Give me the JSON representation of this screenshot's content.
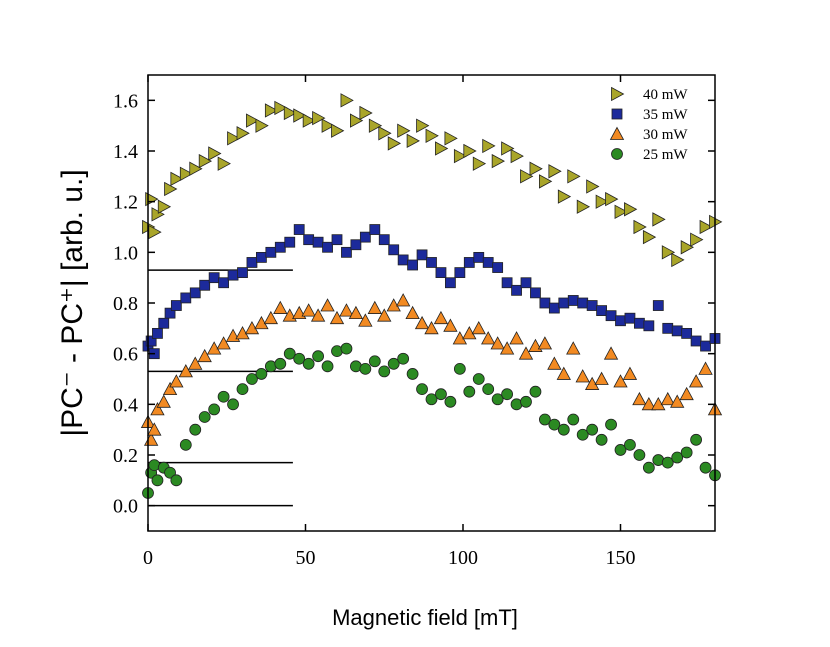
{
  "chart_data": {
    "type": "scatter",
    "title": "",
    "xlabel": "Magnetic field [mT]",
    "ylabel": "|PC⁻ - PC⁺| [arb. u.]",
    "xlim": [
      0,
      180
    ],
    "ylim": [
      -0.1,
      1.7
    ],
    "xticks": [
      0,
      50,
      100,
      150
    ],
    "yticks": [
      0.0,
      0.2,
      0.4,
      0.6,
      0.8,
      1.0,
      1.2,
      1.4,
      1.6
    ],
    "xtick_labels": [
      "0",
      "50",
      "100",
      "150"
    ],
    "ytick_labels": [
      "0.0",
      "0.2",
      "0.4",
      "0.6",
      "0.8",
      "1.0",
      "1.2",
      "1.4",
      "1.6"
    ],
    "grid": false,
    "legend_position": "top-right",
    "reference_lines": [
      {
        "y": 0.93,
        "x_range": [
          0,
          46
        ]
      },
      {
        "y": 0.53,
        "x_range": [
          0,
          46
        ]
      },
      {
        "y": 0.17,
        "x_range": [
          0,
          46
        ]
      },
      {
        "y": 0.0,
        "x_range": [
          0,
          46
        ]
      }
    ],
    "series": [
      {
        "name": "40 mW",
        "marker": "triangle-right",
        "color": "#a9a52a",
        "x": [
          0,
          1,
          2,
          3,
          5,
          7,
          9,
          12,
          15,
          18,
          21,
          24,
          27,
          30,
          33,
          36,
          39,
          42,
          45,
          48,
          51,
          54,
          57,
          60,
          63,
          66,
          69,
          72,
          75,
          78,
          81,
          84,
          87,
          90,
          93,
          96,
          99,
          102,
          105,
          108,
          111,
          114,
          117,
          120,
          123,
          126,
          129,
          132,
          135,
          138,
          141,
          144,
          147,
          150,
          153,
          156,
          159,
          162,
          165,
          168,
          171,
          174,
          177,
          180
        ],
        "y": [
          1.1,
          1.21,
          1.08,
          1.15,
          1.18,
          1.25,
          1.29,
          1.31,
          1.33,
          1.36,
          1.39,
          1.35,
          1.45,
          1.47,
          1.52,
          1.5,
          1.56,
          1.57,
          1.55,
          1.54,
          1.52,
          1.53,
          1.5,
          1.48,
          1.6,
          1.52,
          1.55,
          1.5,
          1.47,
          1.43,
          1.48,
          1.44,
          1.5,
          1.46,
          1.41,
          1.45,
          1.38,
          1.4,
          1.35,
          1.42,
          1.36,
          1.41,
          1.38,
          1.3,
          1.33,
          1.28,
          1.32,
          1.22,
          1.3,
          1.18,
          1.26,
          1.2,
          1.21,
          1.16,
          1.17,
          1.1,
          1.06,
          1.13,
          1.0,
          0.97,
          1.02,
          1.05,
          1.1,
          1.12
        ]
      },
      {
        "name": "35 mW",
        "marker": "square",
        "color": "#1c2a9b",
        "x": [
          0,
          1,
          2,
          3,
          5,
          7,
          9,
          12,
          15,
          18,
          21,
          24,
          27,
          30,
          33,
          36,
          39,
          42,
          45,
          48,
          51,
          54,
          57,
          60,
          63,
          66,
          69,
          72,
          75,
          78,
          81,
          84,
          87,
          90,
          93,
          96,
          99,
          102,
          105,
          108,
          111,
          114,
          117,
          120,
          123,
          126,
          129,
          132,
          135,
          138,
          141,
          144,
          147,
          150,
          153,
          156,
          159,
          162,
          165,
          168,
          171,
          174,
          177,
          180
        ],
        "y": [
          0.63,
          0.65,
          0.6,
          0.68,
          0.72,
          0.76,
          0.79,
          0.82,
          0.84,
          0.87,
          0.9,
          0.88,
          0.91,
          0.92,
          0.96,
          0.98,
          1.0,
          1.02,
          1.04,
          1.09,
          1.05,
          1.04,
          1.02,
          1.05,
          1.0,
          1.03,
          1.06,
          1.09,
          1.05,
          1.01,
          0.97,
          0.95,
          0.99,
          0.96,
          0.92,
          0.88,
          0.92,
          0.96,
          0.98,
          0.96,
          0.94,
          0.88,
          0.85,
          0.88,
          0.84,
          0.8,
          0.78,
          0.8,
          0.81,
          0.8,
          0.79,
          0.77,
          0.75,
          0.73,
          0.74,
          0.72,
          0.71,
          0.79,
          0.7,
          0.69,
          0.68,
          0.65,
          0.63,
          0.66
        ]
      },
      {
        "name": "30 mW",
        "marker": "triangle-up",
        "color": "#f28a22",
        "x": [
          0,
          1,
          2,
          3,
          5,
          7,
          9,
          12,
          15,
          18,
          21,
          24,
          27,
          30,
          33,
          36,
          39,
          42,
          45,
          48,
          51,
          54,
          57,
          60,
          63,
          66,
          69,
          72,
          75,
          78,
          81,
          84,
          87,
          90,
          93,
          96,
          99,
          102,
          105,
          108,
          111,
          114,
          117,
          120,
          123,
          126,
          129,
          132,
          135,
          138,
          141,
          144,
          147,
          150,
          153,
          156,
          159,
          162,
          165,
          168,
          171,
          174,
          177,
          180
        ],
        "y": [
          0.33,
          0.26,
          0.3,
          0.38,
          0.41,
          0.46,
          0.49,
          0.53,
          0.56,
          0.59,
          0.62,
          0.64,
          0.67,
          0.68,
          0.7,
          0.72,
          0.74,
          0.78,
          0.75,
          0.76,
          0.77,
          0.75,
          0.79,
          0.74,
          0.77,
          0.76,
          0.73,
          0.78,
          0.75,
          0.79,
          0.81,
          0.76,
          0.72,
          0.7,
          0.74,
          0.71,
          0.66,
          0.68,
          0.7,
          0.66,
          0.64,
          0.62,
          0.66,
          0.6,
          0.63,
          0.64,
          0.56,
          0.52,
          0.62,
          0.51,
          0.48,
          0.5,
          0.6,
          0.49,
          0.52,
          0.42,
          0.4,
          0.4,
          0.42,
          0.41,
          0.44,
          0.49,
          0.54,
          0.38
        ]
      },
      {
        "name": "25 mW",
        "marker": "circle",
        "color": "#2b8a22",
        "x": [
          0,
          1,
          2,
          3,
          5,
          7,
          9,
          12,
          15,
          18,
          21,
          24,
          27,
          30,
          33,
          36,
          39,
          42,
          45,
          48,
          51,
          54,
          57,
          60,
          63,
          66,
          69,
          72,
          75,
          78,
          81,
          84,
          87,
          90,
          93,
          96,
          99,
          102,
          105,
          108,
          111,
          114,
          117,
          120,
          123,
          126,
          129,
          132,
          135,
          138,
          141,
          144,
          147,
          150,
          153,
          156,
          159,
          162,
          165,
          168,
          171,
          174,
          177,
          180
        ],
        "y": [
          0.05,
          0.13,
          0.16,
          0.1,
          0.15,
          0.13,
          0.1,
          0.24,
          0.3,
          0.35,
          0.38,
          0.43,
          0.4,
          0.46,
          0.5,
          0.52,
          0.55,
          0.56,
          0.6,
          0.58,
          0.56,
          0.59,
          0.55,
          0.61,
          0.62,
          0.55,
          0.54,
          0.57,
          0.53,
          0.56,
          0.58,
          0.52,
          0.46,
          0.42,
          0.44,
          0.41,
          0.54,
          0.45,
          0.5,
          0.46,
          0.42,
          0.44,
          0.4,
          0.41,
          0.45,
          0.34,
          0.32,
          0.3,
          0.34,
          0.28,
          0.3,
          0.26,
          0.32,
          0.22,
          0.24,
          0.2,
          0.15,
          0.18,
          0.17,
          0.19,
          0.21,
          0.26,
          0.15,
          0.12
        ]
      }
    ]
  }
}
